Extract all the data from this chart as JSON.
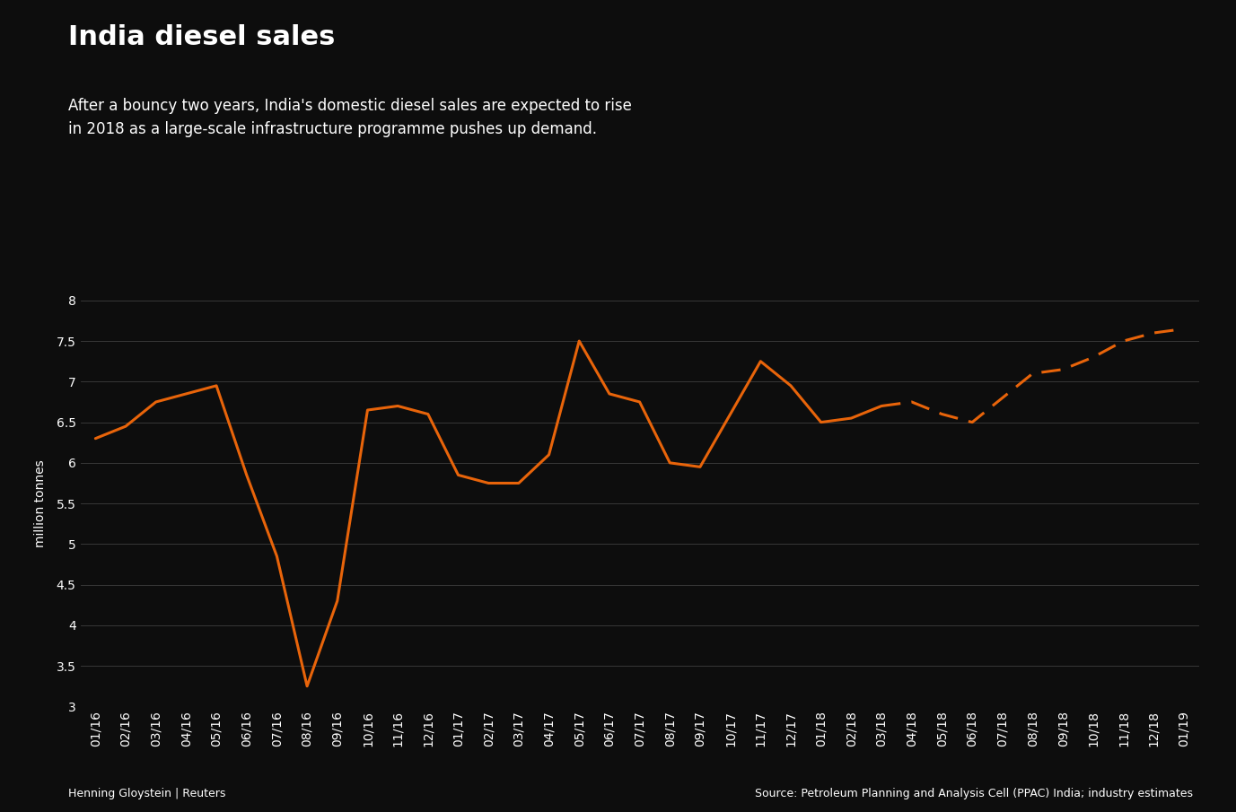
{
  "title": "India diesel sales",
  "subtitle": "After a bouncy two years, India's domestic diesel sales are expected to rise\nin 2018 as a large-scale infrastructure programme pushes up demand.",
  "ylabel": "million tonnes",
  "background_color": "#0d0d0d",
  "plot_bg_color": "#111111",
  "line_color": "#e8640a",
  "text_color": "#ffffff",
  "grid_color": "#444444",
  "title_fontsize": 22,
  "subtitle_fontsize": 12,
  "tick_label_fontsize": 10,
  "ylabel_fontsize": 10,
  "footer_left": "Henning Gloystein | Reuters",
  "footer_right": "Source: Petroleum Planning and Analysis Cell (PPAC) India; industry estimates",
  "x_labels": [
    "01/16",
    "02/16",
    "03/16",
    "04/16",
    "05/16",
    "06/16",
    "07/16",
    "08/16",
    "09/16",
    "10/16",
    "11/16",
    "12/16",
    "01/17",
    "02/17",
    "03/17",
    "04/17",
    "05/17",
    "06/17",
    "07/17",
    "08/17",
    "09/17",
    "10/17",
    "11/17",
    "12/17",
    "01/18",
    "02/18",
    "03/18",
    "04/18",
    "05/18",
    "06/18",
    "07/18",
    "08/18",
    "09/18",
    "10/18",
    "11/18",
    "12/18",
    "01/19"
  ],
  "solid_values": [
    6.3,
    6.45,
    6.75,
    6.85,
    6.95,
    5.85,
    4.85,
    3.25,
    4.3,
    6.65,
    6.7,
    6.6,
    5.85,
    5.75,
    5.75,
    6.1,
    7.5,
    6.85,
    6.75,
    6.0,
    5.95,
    6.6,
    7.25,
    6.95,
    6.5,
    6.55,
    6.7,
    null,
    null,
    null,
    null,
    null,
    null,
    null,
    null,
    null,
    null
  ],
  "dashed_values": [
    null,
    null,
    null,
    null,
    null,
    null,
    null,
    null,
    null,
    null,
    null,
    null,
    null,
    null,
    null,
    null,
    null,
    null,
    null,
    null,
    null,
    null,
    null,
    null,
    null,
    null,
    6.7,
    6.75,
    6.6,
    6.5,
    6.8,
    7.1,
    7.15,
    7.3,
    7.5,
    7.6,
    7.65
  ],
  "ylim": [
    3.0,
    8.0
  ],
  "yticks": [
    3.0,
    3.5,
    4.0,
    4.5,
    5.0,
    5.5,
    6.0,
    6.5,
    7.0,
    7.5,
    8.0
  ]
}
